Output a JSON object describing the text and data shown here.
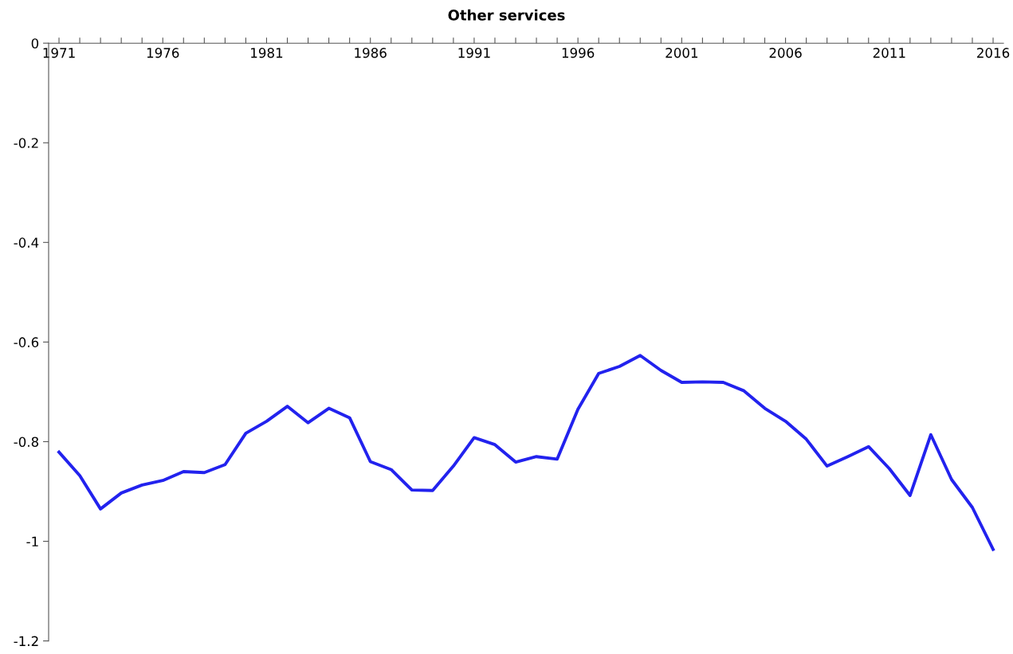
{
  "chart_data": {
    "type": "line",
    "title": "Other services",
    "categories": [
      "1971",
      null,
      null,
      null,
      null,
      "1976",
      null,
      null,
      null,
      null,
      "1981",
      null,
      null,
      null,
      null,
      "1986",
      null,
      null,
      null,
      null,
      "1991",
      null,
      null,
      null,
      null,
      "1996",
      null,
      null,
      null,
      null,
      "2001",
      null,
      null,
      null,
      null,
      "2006",
      null,
      null,
      null,
      null,
      "2011",
      null,
      null,
      null,
      null,
      "2016"
    ],
    "series": [
      {
        "color": "#2222ee",
        "values": [
          -0.821,
          -0.868,
          -0.935,
          -0.903,
          -0.887,
          -0.878,
          -0.86,
          -0.862,
          -0.846,
          -0.783,
          -0.759,
          -0.729,
          -0.762,
          -0.733,
          -0.752,
          -0.84,
          -0.856,
          -0.897,
          -0.898,
          -0.849,
          -0.792,
          -0.806,
          -0.841,
          -0.83,
          -0.835,
          -0.735,
          -0.663,
          -0.649,
          -0.627,
          -0.657,
          -0.681,
          -0.68,
          -0.681,
          -0.698,
          -0.733,
          -0.759,
          -0.795,
          -0.849,
          -0.83,
          -0.81,
          -0.854,
          -0.908,
          -0.786,
          -0.876,
          -0.932,
          -1.016
        ]
      }
    ],
    "ylim": [
      -1.2,
      0
    ],
    "yticks": [
      0,
      {
        "value": -0.2,
        "label": "-0.2"
      },
      {
        "value": -0.4,
        "label": "-0.4"
      },
      {
        "value": -0.6,
        "label": "-0.6"
      },
      {
        "value": -0.8,
        "label": "-0.8"
      },
      {
        "value": -1,
        "label": "-1"
      },
      {
        "value": -1.2,
        "label": "-1.2"
      }
    ],
    "grid": false,
    "marker": "none",
    "line_style": "solid"
  }
}
